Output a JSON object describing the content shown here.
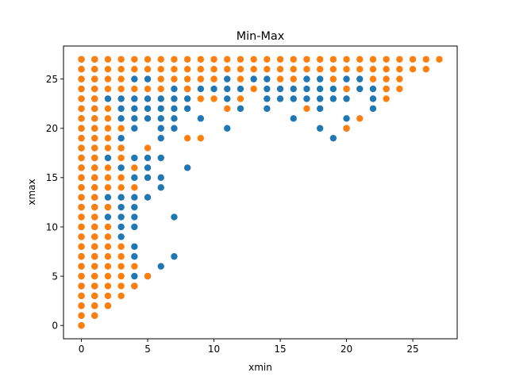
{
  "chart_data": {
    "type": "scatter",
    "title": "Min-Max",
    "xlabel": "xmin",
    "ylabel": "xmax",
    "xlim": [
      -1.35,
      28.35
    ],
    "ylim": [
      -1.35,
      28.35
    ],
    "xticks": [
      0,
      5,
      10,
      15,
      20,
      25
    ],
    "yticks": [
      0,
      5,
      10,
      15,
      20,
      25
    ],
    "grid": false,
    "legend": "none",
    "series": [
      {
        "color": "#1f77b4",
        "points": [
          [
            0,
            0
          ],
          [
            0,
            1
          ],
          [
            0,
            2
          ],
          [
            0,
            3
          ],
          [
            0,
            4
          ],
          [
            0,
            5
          ],
          [
            0,
            6
          ],
          [
            0,
            7
          ],
          [
            0,
            8
          ],
          [
            0,
            9
          ],
          [
            0,
            10
          ],
          [
            0,
            11
          ],
          [
            0,
            12
          ],
          [
            0,
            13
          ],
          [
            0,
            14
          ],
          [
            0,
            15
          ],
          [
            0,
            16
          ],
          [
            0,
            17
          ],
          [
            0,
            18
          ],
          [
            0,
            19
          ],
          [
            0,
            20
          ],
          [
            0,
            21
          ],
          [
            0,
            22
          ],
          [
            0,
            23
          ],
          [
            0,
            24
          ],
          [
            0,
            25
          ],
          [
            0,
            26
          ],
          [
            0,
            27
          ],
          [
            1,
            1
          ],
          [
            1,
            2
          ],
          [
            1,
            3
          ],
          [
            1,
            4
          ],
          [
            1,
            5
          ],
          [
            1,
            6
          ],
          [
            1,
            7
          ],
          [
            1,
            8
          ],
          [
            1,
            9
          ],
          [
            1,
            10
          ],
          [
            1,
            11
          ],
          [
            1,
            12
          ],
          [
            1,
            13
          ],
          [
            1,
            14
          ],
          [
            1,
            15
          ],
          [
            1,
            16
          ],
          [
            1,
            17
          ],
          [
            1,
            18
          ],
          [
            1,
            19
          ],
          [
            1,
            20
          ],
          [
            1,
            21
          ],
          [
            1,
            22
          ],
          [
            1,
            23
          ],
          [
            1,
            24
          ],
          [
            1,
            25
          ],
          [
            1,
            26
          ],
          [
            1,
            27
          ],
          [
            2,
            2
          ],
          [
            2,
            11
          ],
          [
            2,
            12
          ],
          [
            2,
            13
          ],
          [
            2,
            17
          ],
          [
            2,
            23
          ],
          [
            3,
            9
          ],
          [
            3,
            10
          ],
          [
            3,
            11
          ],
          [
            3,
            12
          ],
          [
            3,
            13
          ],
          [
            3,
            16
          ],
          [
            3,
            18
          ],
          [
            3,
            19
          ],
          [
            3,
            21
          ],
          [
            3,
            22
          ],
          [
            3,
            23
          ],
          [
            4,
            4
          ],
          [
            4,
            5
          ],
          [
            4,
            7
          ],
          [
            4,
            8
          ],
          [
            4,
            10
          ],
          [
            4,
            11
          ],
          [
            4,
            12
          ],
          [
            4,
            13
          ],
          [
            4,
            15
          ],
          [
            4,
            17
          ],
          [
            4,
            20
          ],
          [
            4,
            21
          ],
          [
            4,
            22
          ],
          [
            4,
            23
          ],
          [
            4,
            25
          ],
          [
            5,
            5
          ],
          [
            5,
            13
          ],
          [
            5,
            15
          ],
          [
            5,
            16
          ],
          [
            5,
            17
          ],
          [
            5,
            21
          ],
          [
            5,
            22
          ],
          [
            5,
            23
          ],
          [
            5,
            25
          ],
          [
            6,
            6
          ],
          [
            6,
            14
          ],
          [
            6,
            15
          ],
          [
            6,
            17
          ],
          [
            6,
            19
          ],
          [
            6,
            20
          ],
          [
            6,
            21
          ],
          [
            6,
            22
          ],
          [
            6,
            23
          ],
          [
            7,
            7
          ],
          [
            7,
            11
          ],
          [
            7,
            20
          ],
          [
            7,
            21
          ],
          [
            7,
            22
          ],
          [
            7,
            23
          ],
          [
            7,
            24
          ],
          [
            8,
            16
          ],
          [
            8,
            22
          ],
          [
            8,
            23
          ],
          [
            8,
            24
          ],
          [
            9,
            21
          ],
          [
            9,
            24
          ],
          [
            10,
            24
          ],
          [
            11,
            20
          ],
          [
            11,
            23
          ],
          [
            11,
            24
          ],
          [
            11,
            25
          ],
          [
            12,
            22
          ],
          [
            12,
            24
          ],
          [
            13,
            25
          ],
          [
            14,
            22
          ],
          [
            14,
            23
          ],
          [
            14,
            24
          ],
          [
            14,
            25
          ],
          [
            15,
            23
          ],
          [
            15,
            24
          ],
          [
            16,
            21
          ],
          [
            16,
            23
          ],
          [
            16,
            24
          ],
          [
            17,
            23
          ],
          [
            17,
            24
          ],
          [
            17,
            25
          ],
          [
            18,
            20
          ],
          [
            18,
            22
          ],
          [
            18,
            23
          ],
          [
            18,
            24
          ],
          [
            18,
            25
          ],
          [
            19,
            19
          ],
          [
            19,
            23
          ],
          [
            19,
            24
          ],
          [
            20,
            20
          ],
          [
            20,
            21
          ],
          [
            20,
            23
          ],
          [
            20,
            24
          ],
          [
            20,
            25
          ],
          [
            21,
            24
          ],
          [
            21,
            25
          ],
          [
            22,
            22
          ],
          [
            22,
            23
          ],
          [
            22,
            24
          ],
          [
            23,
            24
          ]
        ]
      },
      {
        "color": "#ff7f0e",
        "points": [
          [
            0,
            0
          ],
          [
            0,
            1
          ],
          [
            0,
            2
          ],
          [
            0,
            3
          ],
          [
            0,
            4
          ],
          [
            0,
            5
          ],
          [
            0,
            6
          ],
          [
            0,
            7
          ],
          [
            0,
            8
          ],
          [
            0,
            9
          ],
          [
            0,
            10
          ],
          [
            0,
            11
          ],
          [
            0,
            12
          ],
          [
            0,
            13
          ],
          [
            0,
            14
          ],
          [
            0,
            15
          ],
          [
            0,
            16
          ],
          [
            0,
            17
          ],
          [
            0,
            18
          ],
          [
            0,
            19
          ],
          [
            0,
            20
          ],
          [
            0,
            21
          ],
          [
            0,
            22
          ],
          [
            0,
            23
          ],
          [
            0,
            24
          ],
          [
            0,
            25
          ],
          [
            0,
            26
          ],
          [
            0,
            27
          ],
          [
            1,
            1
          ],
          [
            1,
            2
          ],
          [
            1,
            3
          ],
          [
            1,
            4
          ],
          [
            1,
            5
          ],
          [
            1,
            6
          ],
          [
            1,
            7
          ],
          [
            1,
            8
          ],
          [
            1,
            9
          ],
          [
            1,
            10
          ],
          [
            1,
            11
          ],
          [
            1,
            12
          ],
          [
            1,
            13
          ],
          [
            1,
            14
          ],
          [
            1,
            15
          ],
          [
            1,
            16
          ],
          [
            1,
            17
          ],
          [
            1,
            18
          ],
          [
            1,
            19
          ],
          [
            1,
            20
          ],
          [
            1,
            21
          ],
          [
            1,
            22
          ],
          [
            1,
            23
          ],
          [
            1,
            24
          ],
          [
            1,
            25
          ],
          [
            1,
            26
          ],
          [
            1,
            27
          ],
          [
            2,
            2
          ],
          [
            2,
            3
          ],
          [
            2,
            4
          ],
          [
            2,
            5
          ],
          [
            2,
            6
          ],
          [
            2,
            7
          ],
          [
            2,
            8
          ],
          [
            2,
            9
          ],
          [
            2,
            10
          ],
          [
            2,
            12
          ],
          [
            2,
            14
          ],
          [
            2,
            15
          ],
          [
            2,
            16
          ],
          [
            2,
            18
          ],
          [
            2,
            19
          ],
          [
            2,
            20
          ],
          [
            2,
            21
          ],
          [
            2,
            22
          ],
          [
            2,
            24
          ],
          [
            2,
            25
          ],
          [
            2,
            26
          ],
          [
            2,
            27
          ],
          [
            3,
            3
          ],
          [
            3,
            4
          ],
          [
            3,
            5
          ],
          [
            3,
            6
          ],
          [
            3,
            7
          ],
          [
            3,
            8
          ],
          [
            3,
            14
          ],
          [
            3,
            15
          ],
          [
            3,
            17
          ],
          [
            3,
            18
          ],
          [
            3,
            20
          ],
          [
            3,
            24
          ],
          [
            3,
            25
          ],
          [
            3,
            26
          ],
          [
            3,
            27
          ],
          [
            4,
            4
          ],
          [
            4,
            6
          ],
          [
            4,
            14
          ],
          [
            4,
            16
          ],
          [
            4,
            24
          ],
          [
            4,
            26
          ],
          [
            4,
            27
          ],
          [
            5,
            5
          ],
          [
            5,
            18
          ],
          [
            5,
            24
          ],
          [
            5,
            26
          ],
          [
            5,
            27
          ],
          [
            6,
            24
          ],
          [
            6,
            25
          ],
          [
            6,
            26
          ],
          [
            6,
            27
          ],
          [
            7,
            25
          ],
          [
            7,
            26
          ],
          [
            7,
            27
          ],
          [
            8,
            19
          ],
          [
            8,
            24
          ],
          [
            8,
            25
          ],
          [
            8,
            26
          ],
          [
            8,
            27
          ],
          [
            9,
            19
          ],
          [
            9,
            23
          ],
          [
            9,
            25
          ],
          [
            9,
            26
          ],
          [
            9,
            27
          ],
          [
            10,
            23
          ],
          [
            10,
            25
          ],
          [
            10,
            26
          ],
          [
            10,
            27
          ],
          [
            11,
            22
          ],
          [
            11,
            26
          ],
          [
            11,
            27
          ],
          [
            12,
            23
          ],
          [
            12,
            25
          ],
          [
            12,
            26
          ],
          [
            12,
            27
          ],
          [
            13,
            24
          ],
          [
            13,
            26
          ],
          [
            13,
            27
          ],
          [
            14,
            26
          ],
          [
            14,
            27
          ],
          [
            15,
            25
          ],
          [
            15,
            26
          ],
          [
            15,
            27
          ],
          [
            16,
            25
          ],
          [
            16,
            26
          ],
          [
            16,
            27
          ],
          [
            17,
            22
          ],
          [
            17,
            26
          ],
          [
            17,
            27
          ],
          [
            18,
            26
          ],
          [
            18,
            27
          ],
          [
            19,
            25
          ],
          [
            19,
            26
          ],
          [
            19,
            27
          ],
          [
            20,
            20
          ],
          [
            20,
            24
          ],
          [
            20,
            26
          ],
          [
            20,
            27
          ],
          [
            21,
            21
          ],
          [
            21,
            26
          ],
          [
            21,
            27
          ],
          [
            22,
            25
          ],
          [
            22,
            26
          ],
          [
            22,
            27
          ],
          [
            23,
            23
          ],
          [
            23,
            24
          ],
          [
            23,
            25
          ],
          [
            23,
            26
          ],
          [
            23,
            27
          ],
          [
            24,
            24
          ],
          [
            24,
            25
          ],
          [
            24,
            26
          ],
          [
            24,
            27
          ],
          [
            25,
            26
          ],
          [
            25,
            27
          ],
          [
            26,
            26
          ],
          [
            26,
            27
          ],
          [
            27,
            27
          ]
        ]
      }
    ]
  }
}
